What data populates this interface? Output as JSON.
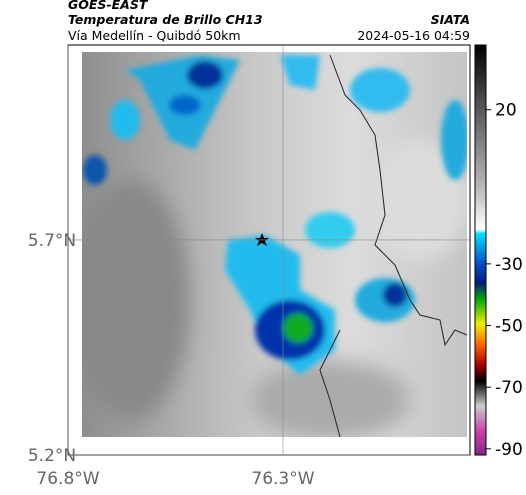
{
  "header": {
    "source": "GOES-EAST",
    "product": "Temperatura de Brillo CH13",
    "region": "Vía Medellín - Quibdó 50km",
    "org": "SIATA",
    "datetime": "2024-05-16 04:59"
  },
  "map": {
    "xlim": [
      -76.8,
      -75.865
    ],
    "ylim": [
      5.2,
      6.153
    ],
    "xticks": [
      {
        "value": -76.8,
        "label": "76.8°W"
      },
      {
        "value": -76.3,
        "label": "76.3°W"
      }
    ],
    "yticks": [
      {
        "value": 5.7,
        "label": "5.7°N"
      },
      {
        "value": 5.2,
        "label": "5.2°N"
      }
    ]
  },
  "colorbar": {
    "lim": [
      -92,
      41
    ],
    "ticks": [
      20,
      -30,
      -50,
      -70,
      -90
    ]
  }
}
